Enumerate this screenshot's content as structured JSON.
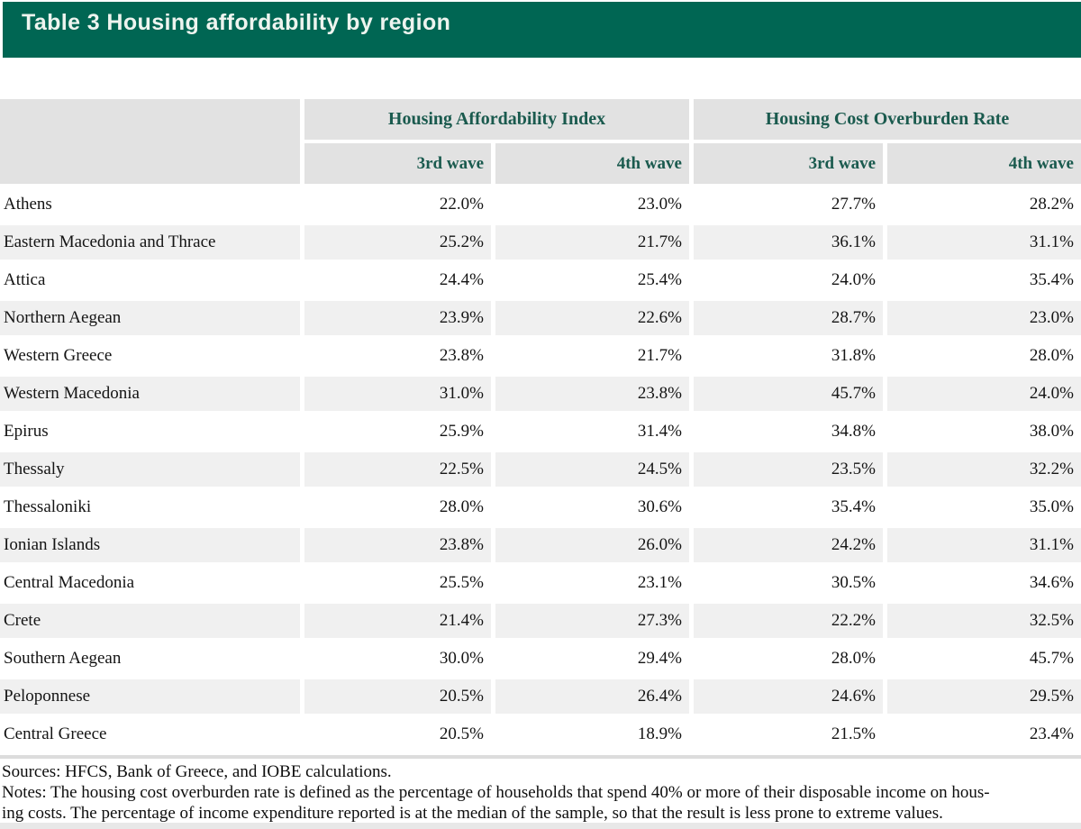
{
  "title": "Table 3 Housing affordability by region",
  "table": {
    "groups": [
      {
        "label": "Housing Affordability Index"
      },
      {
        "label": "Housing Cost Overburden Rate"
      }
    ],
    "subheaders": [
      "3rd wave",
      "4th wave",
      "3rd wave",
      "4th wave"
    ],
    "rows": [
      {
        "region": "Athens",
        "values": [
          "22.0%",
          "23.0%",
          "27.7%",
          "28.2%"
        ]
      },
      {
        "region": "Eastern Macedonia and Thrace",
        "values": [
          "25.2%",
          "21.7%",
          "36.1%",
          "31.1%"
        ]
      },
      {
        "region": "Attica",
        "values": [
          "24.4%",
          "25.4%",
          "24.0%",
          "35.4%"
        ]
      },
      {
        "region": "Northern Aegean",
        "values": [
          "23.9%",
          "22.6%",
          "28.7%",
          "23.0%"
        ]
      },
      {
        "region": "Western Greece",
        "values": [
          "23.8%",
          "21.7%",
          "31.8%",
          "28.0%"
        ]
      },
      {
        "region": "Western Macedonia",
        "values": [
          "31.0%",
          "23.8%",
          "45.7%",
          "24.0%"
        ]
      },
      {
        "region": "Epirus",
        "values": [
          "25.9%",
          "31.4%",
          "34.8%",
          "38.0%"
        ]
      },
      {
        "region": "Thessaly",
        "values": [
          "22.5%",
          "24.5%",
          "23.5%",
          "32.2%"
        ]
      },
      {
        "region": "Thessaloniki",
        "values": [
          "28.0%",
          "30.6%",
          "35.4%",
          "35.0%"
        ]
      },
      {
        "region": "Ionian Islands",
        "values": [
          "23.8%",
          "26.0%",
          "24.2%",
          "31.1%"
        ]
      },
      {
        "region": "Central Macedonia",
        "values": [
          "25.5%",
          "23.1%",
          "30.5%",
          "34.6%"
        ]
      },
      {
        "region": "Crete",
        "values": [
          "21.4%",
          "27.3%",
          "22.2%",
          "32.5%"
        ]
      },
      {
        "region": "Southern Aegean",
        "values": [
          "30.0%",
          "29.4%",
          "28.0%",
          "45.7%"
        ]
      },
      {
        "region": "Peloponnese",
        "values": [
          "20.5%",
          "26.4%",
          "24.6%",
          "29.5%"
        ]
      },
      {
        "region": "Central Greece",
        "values": [
          "20.5%",
          "18.9%",
          "21.5%",
          "23.4%"
        ]
      }
    ]
  },
  "footer": {
    "sources": "Sources: HFCS, Bank of Greece, and IOBE calculations.",
    "notes_line1": "Notes: The housing cost overburden rate is defined as the percentage of households that spend 40% or more of their disposable income on hous-",
    "notes_line2": "ing costs. The percentage of income expenditure reported is at the median of the sample, so that the result is less prone to extreme values."
  },
  "colors": {
    "banner_green": "#006653",
    "header_cell_gray": "#e2e2e2",
    "row_stripe_gray": "#f0f0f0",
    "header_text_green": "#1a5a4e"
  }
}
